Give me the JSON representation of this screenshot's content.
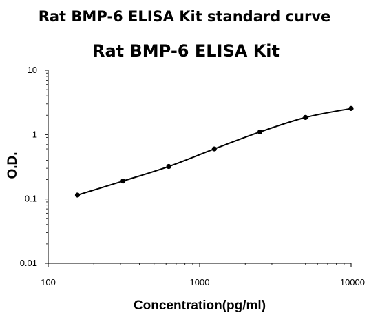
{
  "header": {
    "heading": "Rat BMP-6 ELISA Kit standard curve"
  },
  "chart_data": {
    "type": "line",
    "title": "Rat BMP-6 ELISA Kit",
    "xlabel": "Concentration(pg/ml)",
    "ylabel": "O.D.",
    "x_scale": "log",
    "y_scale": "log",
    "xlim": [
      100,
      10000
    ],
    "ylim": [
      0.01,
      10
    ],
    "x_ticks": [
      100,
      1000,
      10000
    ],
    "x_tick_labels": [
      "100",
      "1000",
      "10000"
    ],
    "y_ticks": [
      0.01,
      0.1,
      1,
      10
    ],
    "y_tick_labels": [
      "0.01",
      "0.1",
      "1",
      "10"
    ],
    "grid": false,
    "legend": false,
    "series": [
      {
        "x": [
          156,
          312,
          625,
          1250,
          2500,
          5000,
          10000
        ],
        "y": [
          0.115,
          0.19,
          0.32,
          0.6,
          1.1,
          1.85,
          2.55
        ]
      }
    ]
  }
}
